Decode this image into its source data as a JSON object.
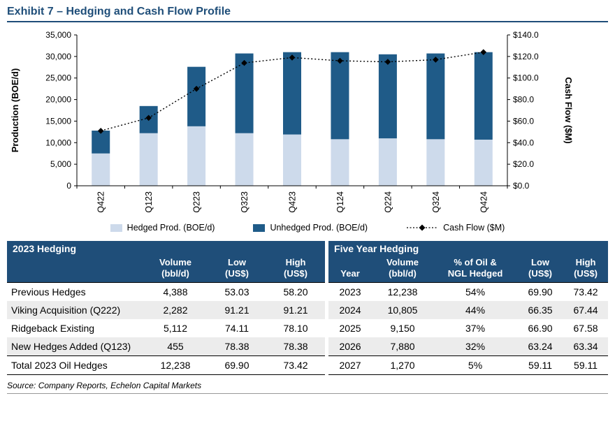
{
  "exhibit_title": "Exhibit 7 – Hedging and Cash Flow Profile",
  "source": "Source: Company Reports, Echelon Capital Markets",
  "colors": {
    "accent": "#1F4E79",
    "hedged_bar": "#CDDAEB",
    "unhedged_bar": "#1F5B88",
    "cashflow_line": "#000000",
    "alt_row": "#ECECEC",
    "table_header_bg": "#1F4E79",
    "table_header_text": "#FFFFFF"
  },
  "chart_data": {
    "type": "bar",
    "subtype": "stacked-bars-with-secondary-axis-line",
    "categories": [
      "Q422",
      "Q123",
      "Q223",
      "Q323",
      "Q423",
      "Q124",
      "Q224",
      "Q324",
      "Q424"
    ],
    "series": [
      {
        "name": "Hedged Prod. (BOE/d)",
        "type": "bar",
        "axis": "left",
        "values": [
          7500,
          12200,
          13800,
          12200,
          11900,
          10800,
          11000,
          10800,
          10700
        ]
      },
      {
        "name": "Unhedged Prod. (BOE/d)",
        "type": "bar",
        "axis": "left",
        "values": [
          5300,
          6300,
          13800,
          18500,
          19100,
          20200,
          19500,
          19900,
          20300
        ]
      },
      {
        "name": "Cash Flow ($M)",
        "type": "line",
        "axis": "right",
        "values": [
          51,
          63,
          90,
          114,
          119,
          116,
          115,
          117,
          124
        ]
      }
    ],
    "left_axis": {
      "label": "Production (BOE/d)",
      "min": 0,
      "max": 35000,
      "tick_step": 5000,
      "tick_labels": [
        "0",
        "5,000",
        "10,000",
        "15,000",
        "20,000",
        "25,000",
        "30,000",
        "35,000"
      ]
    },
    "right_axis": {
      "label": "Cash Flow ($M)",
      "min": 0,
      "max": 140,
      "tick_step": 20,
      "tick_labels": [
        "$0.0",
        "$20.0",
        "$40.0",
        "$60.0",
        "$80.0",
        "$100.0",
        "$120.0",
        "$140.0"
      ]
    },
    "legend_position": "bottom",
    "grid": false
  },
  "table_2023": {
    "title": "2023 Hedging",
    "columns": [
      {
        "line1": "",
        "line2": "",
        "align": "left"
      },
      {
        "line1": "Volume",
        "line2": "(bbl/d)",
        "align": "center"
      },
      {
        "line1": "Low",
        "line2": "(US$)",
        "align": "center"
      },
      {
        "line1": "High",
        "line2": "(US$)",
        "align": "center"
      }
    ],
    "rows": [
      [
        "Previous Hedges",
        "4,388",
        "53.03",
        "58.20"
      ],
      [
        "Viking Acquisition (Q222)",
        "2,282",
        "91.21",
        "91.21"
      ],
      [
        "Ridgeback Existing",
        "5,112",
        "74.11",
        "78.10"
      ],
      [
        "New Hedges Added (Q123)",
        "455",
        "78.38",
        "78.38"
      ],
      [
        "Total 2023 Oil Hedges",
        "12,238",
        "69.90",
        "73.42"
      ]
    ],
    "last_row_rule": true
  },
  "table_five_year": {
    "title": "Five Year Hedging",
    "columns": [
      {
        "line1": "",
        "line2": "Year",
        "align": "center"
      },
      {
        "line1": "Volume",
        "line2": "(bbl/d)",
        "align": "center"
      },
      {
        "line1": "% of Oil &",
        "line2": "NGL Hedged",
        "align": "center"
      },
      {
        "line1": "Low",
        "line2": "(US$)",
        "align": "center"
      },
      {
        "line1": "High",
        "line2": "(US$)",
        "align": "center"
      }
    ],
    "rows": [
      [
        "2023",
        "12,238",
        "54%",
        "69.90",
        "73.42"
      ],
      [
        "2024",
        "10,805",
        "44%",
        "66.35",
        "67.44"
      ],
      [
        "2025",
        "9,150",
        "37%",
        "66.90",
        "67.58"
      ],
      [
        "2026",
        "7,880",
        "32%",
        "63.24",
        "63.34"
      ],
      [
        "2027",
        "1,270",
        "5%",
        "59.11",
        "59.11"
      ]
    ],
    "last_row_rule": true
  }
}
